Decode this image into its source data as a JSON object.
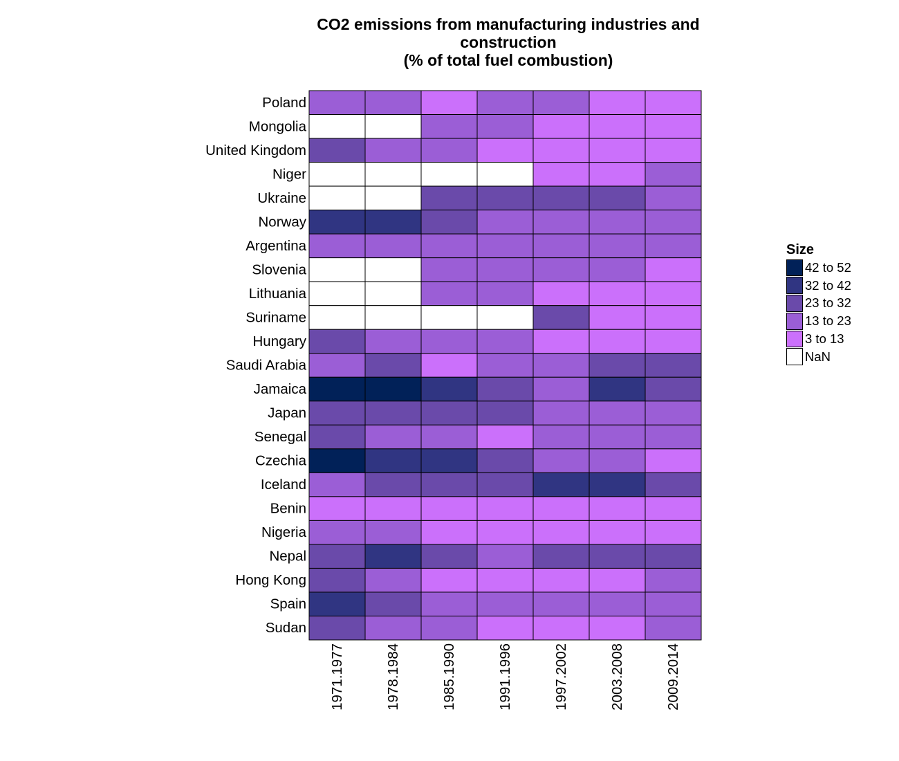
{
  "chart_data": {
    "type": "heatmap",
    "title_lines": [
      "CO2 emissions from manufacturing industries and",
      "construction",
      "(% of total fuel combustion)"
    ],
    "xlabel": "",
    "ylabel": "",
    "x_categories": [
      "1971.1977",
      "1978.1984",
      "1985.1990",
      "1991.1996",
      "1997.2002",
      "2003.2008",
      "2009.2014"
    ],
    "y_categories": [
      "Poland",
      "Mongolia",
      "United Kingdom",
      "Niger",
      "Ukraine",
      "Norway",
      "Argentina",
      "Slovenia",
      "Lithuania",
      "Suriname",
      "Hungary",
      "Saudi Arabia",
      "Jamaica",
      "Japan",
      "Senegal",
      "Czechia",
      "Iceland",
      "Benin",
      "Nigeria",
      "Nepal",
      "Hong Kong",
      "Spain",
      "Sudan"
    ],
    "legend": {
      "title": "Size",
      "position": "right",
      "bins": [
        {
          "label": "42 to 52",
          "color": "#012158"
        },
        {
          "label": "32 to 42",
          "color": "#303582"
        },
        {
          "label": "23 to 32",
          "color": "#6a4aaa"
        },
        {
          "label": "13 to 23",
          "color": "#9b5ed6"
        },
        {
          "label": "3 to 13",
          "color": "#cb70fb"
        },
        {
          "label": "NaN",
          "color": "#ffffff"
        }
      ]
    },
    "cell_bins": [
      [
        "13 to 23",
        "13 to 23",
        "3 to 13",
        "13 to 23",
        "13 to 23",
        "3 to 13",
        "3 to 13"
      ],
      [
        "NaN",
        "NaN",
        "13 to 23",
        "13 to 23",
        "3 to 13",
        "3 to 13",
        "3 to 13"
      ],
      [
        "23 to 32",
        "13 to 23",
        "13 to 23",
        "3 to 13",
        "3 to 13",
        "3 to 13",
        "3 to 13"
      ],
      [
        "NaN",
        "NaN",
        "NaN",
        "NaN",
        "3 to 13",
        "3 to 13",
        "13 to 23"
      ],
      [
        "NaN",
        "NaN",
        "23 to 32",
        "23 to 32",
        "23 to 32",
        "23 to 32",
        "13 to 23"
      ],
      [
        "32 to 42",
        "32 to 42",
        "23 to 32",
        "13 to 23",
        "13 to 23",
        "13 to 23",
        "13 to 23"
      ],
      [
        "13 to 23",
        "13 to 23",
        "13 to 23",
        "13 to 23",
        "13 to 23",
        "13 to 23",
        "13 to 23"
      ],
      [
        "NaN",
        "NaN",
        "13 to 23",
        "13 to 23",
        "13 to 23",
        "13 to 23",
        "3 to 13"
      ],
      [
        "NaN",
        "NaN",
        "13 to 23",
        "13 to 23",
        "3 to 13",
        "3 to 13",
        "3 to 13"
      ],
      [
        "NaN",
        "NaN",
        "NaN",
        "NaN",
        "23 to 32",
        "3 to 13",
        "3 to 13"
      ],
      [
        "23 to 32",
        "13 to 23",
        "13 to 23",
        "13 to 23",
        "3 to 13",
        "3 to 13",
        "3 to 13"
      ],
      [
        "13 to 23",
        "23 to 32",
        "3 to 13",
        "13 to 23",
        "13 to 23",
        "23 to 32",
        "23 to 32"
      ],
      [
        "42 to 52",
        "42 to 52",
        "32 to 42",
        "23 to 32",
        "13 to 23",
        "32 to 42",
        "23 to 32"
      ],
      [
        "23 to 32",
        "23 to 32",
        "23 to 32",
        "23 to 32",
        "13 to 23",
        "13 to 23",
        "13 to 23"
      ],
      [
        "23 to 32",
        "13 to 23",
        "13 to 23",
        "3 to 13",
        "13 to 23",
        "13 to 23",
        "13 to 23"
      ],
      [
        "42 to 52",
        "32 to 42",
        "32 to 42",
        "23 to 32",
        "13 to 23",
        "13 to 23",
        "3 to 13"
      ],
      [
        "13 to 23",
        "23 to 32",
        "23 to 32",
        "23 to 32",
        "32 to 42",
        "32 to 42",
        "23 to 32"
      ],
      [
        "3 to 13",
        "3 to 13",
        "3 to 13",
        "3 to 13",
        "3 to 13",
        "3 to 13",
        "3 to 13"
      ],
      [
        "13 to 23",
        "13 to 23",
        "3 to 13",
        "3 to 13",
        "3 to 13",
        "3 to 13",
        "3 to 13"
      ],
      [
        "23 to 32",
        "32 to 42",
        "23 to 32",
        "13 to 23",
        "23 to 32",
        "23 to 32",
        "23 to 32"
      ],
      [
        "23 to 32",
        "13 to 23",
        "3 to 13",
        "3 to 13",
        "3 to 13",
        "3 to 13",
        "13 to 23"
      ],
      [
        "32 to 42",
        "23 to 32",
        "13 to 23",
        "13 to 23",
        "13 to 23",
        "13 to 23",
        "13 to 23"
      ],
      [
        "23 to 32",
        "13 to 23",
        "13 to 23",
        "3 to 13",
        "3 to 13",
        "3 to 13",
        "13 to 23"
      ]
    ]
  }
}
